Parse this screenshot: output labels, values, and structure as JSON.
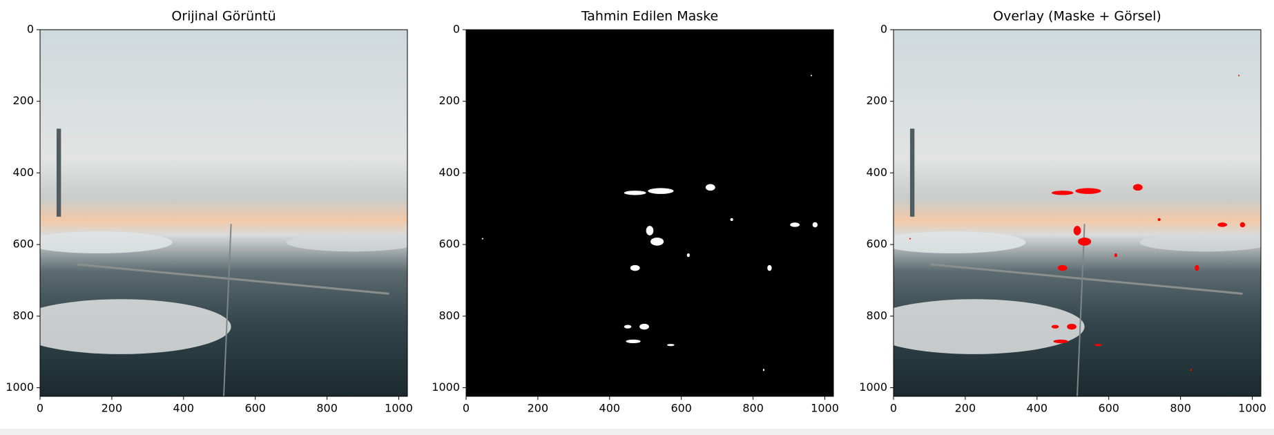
{
  "chart_data": [
    {
      "type": "image",
      "title": "Orijinal Görüntü",
      "xlim": [
        0,
        1024
      ],
      "ylim": [
        1024,
        0
      ],
      "xticks": [
        0,
        200,
        400,
        600,
        800,
        1000
      ],
      "yticks": [
        0,
        200,
        400,
        600,
        800,
        1000
      ]
    },
    {
      "type": "mask",
      "title": "Tahmin Edilen Maske",
      "xlim": [
        0,
        1024
      ],
      "ylim": [
        1024,
        0
      ],
      "xticks": [
        0,
        200,
        400,
        600,
        800,
        1000
      ],
      "yticks": [
        0,
        200,
        400,
        600,
        800,
        1000
      ]
    },
    {
      "type": "overlay",
      "title": "Overlay (Maske + Görsel)",
      "xlim": [
        0,
        1024
      ],
      "ylim": [
        1024,
        0
      ],
      "xticks": [
        0,
        200,
        400,
        600,
        800,
        1000
      ],
      "yticks": [
        0,
        200,
        400,
        600,
        800,
        1000
      ]
    }
  ]
}
